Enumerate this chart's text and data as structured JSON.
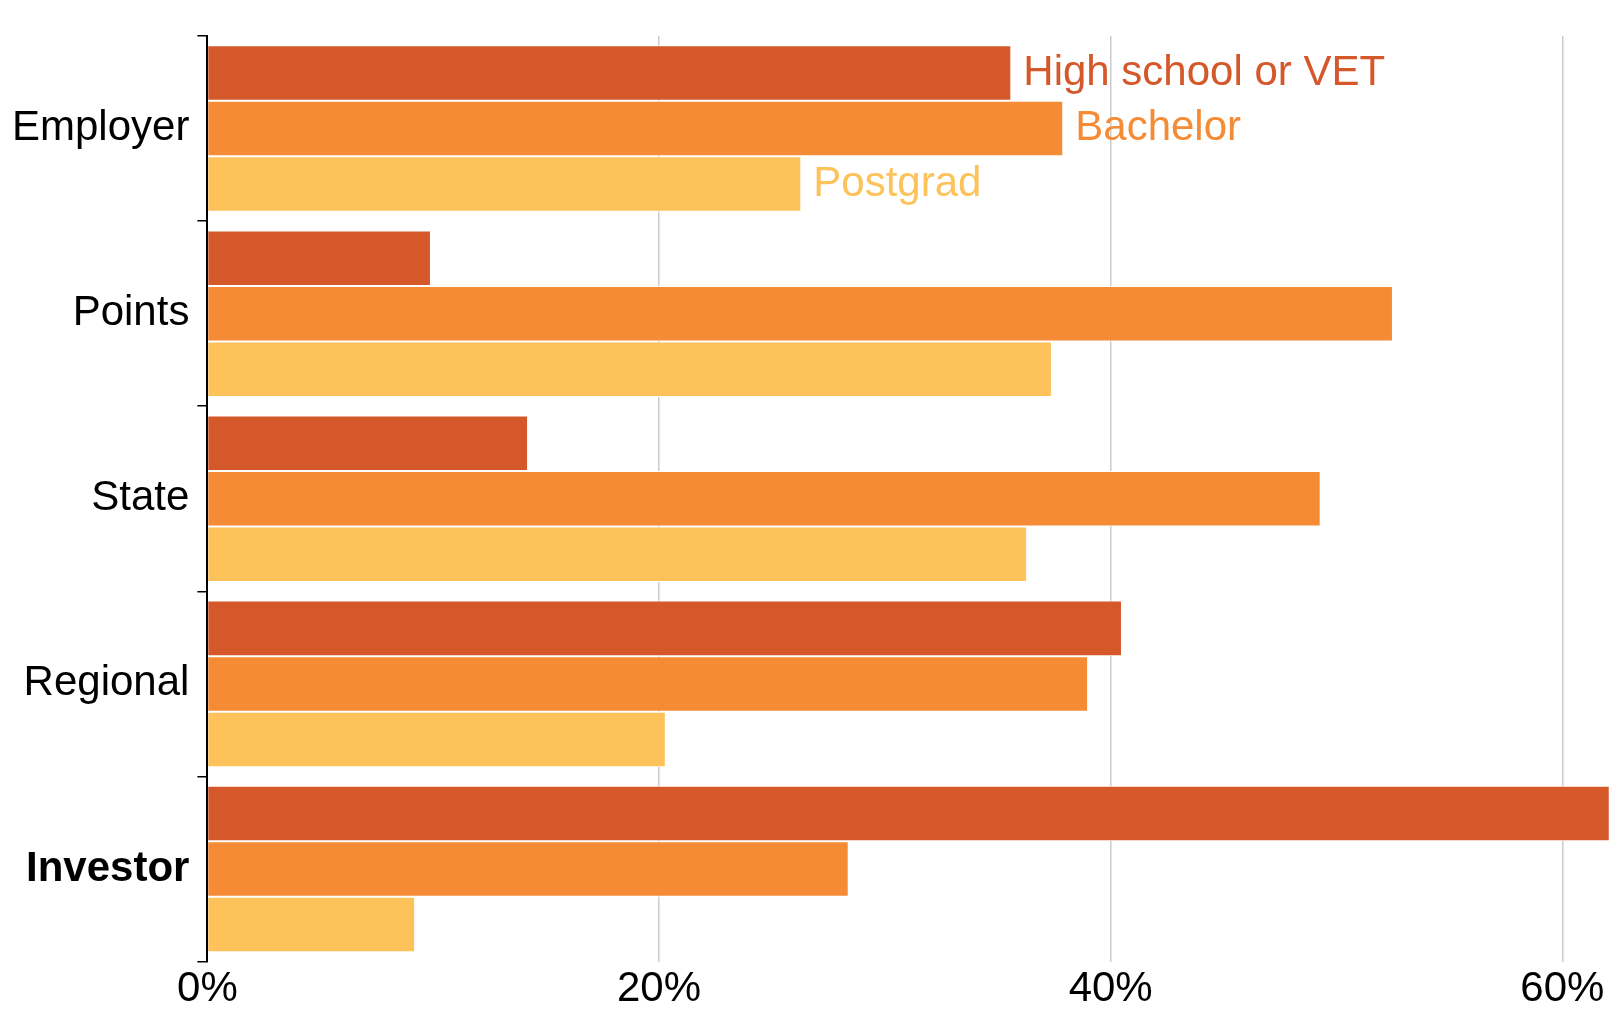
{
  "chart_data": {
    "type": "bar",
    "orientation": "horizontal",
    "categories": [
      "Employer",
      "Points",
      "State",
      "Regional",
      "Investor"
    ],
    "series": [
      {
        "name": "High school or VET",
        "color": "#d4582a",
        "values": [
          35.6,
          9.9,
          14.2,
          40.5,
          62.1
        ]
      },
      {
        "name": "Bachelor",
        "color": "#f58b35",
        "values": [
          37.9,
          52.5,
          49.3,
          39.0,
          28.4
        ]
      },
      {
        "name": "Postgrad",
        "color": "#fec25b",
        "values": [
          26.3,
          37.4,
          36.3,
          20.3,
          9.2
        ]
      }
    ],
    "xlim": [
      0,
      62.2
    ],
    "xticks": [
      {
        "value": 0,
        "label": "0%"
      },
      {
        "value": 20,
        "label": "20%"
      },
      {
        "value": 40,
        "label": "40%"
      },
      {
        "value": 60,
        "label": "60%"
      }
    ],
    "grid": "x",
    "legend": false
  }
}
